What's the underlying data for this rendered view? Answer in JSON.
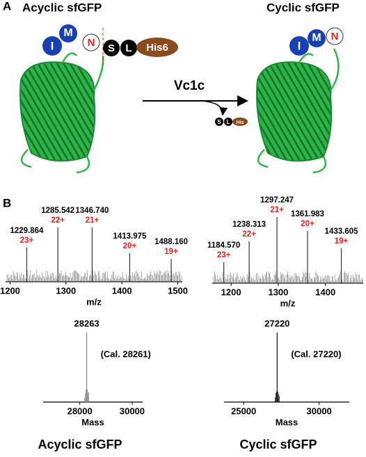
{
  "panel_a": {
    "label": "A",
    "left_title": "Acyclic sfGFP",
    "right_title": "Cyclic sfGFP",
    "enzyme": "Vc1c",
    "left_tags": [
      "I",
      "M",
      "N",
      "S",
      "L",
      "His6"
    ],
    "right_tags": [
      "I",
      "M",
      "N"
    ],
    "byproduct_tags": [
      "S",
      "L",
      "His"
    ]
  },
  "panel_b_label": "B",
  "chart_data": [
    {
      "type": "spectrum",
      "x": [
        1229.864,
        1285.542,
        1346.74,
        1413.975,
        1488.16
      ],
      "x_labels": [
        "1229.864",
        "1285.542",
        "1346.740",
        "1413.975",
        "1488.160"
      ],
      "charges": [
        "23+",
        "22+",
        "21+",
        "20+",
        "19+"
      ],
      "values": [
        60,
        95,
        95,
        50,
        40
      ],
      "xlim": [
        1192,
        1508
      ],
      "xticks": [
        1200,
        1300,
        1400,
        1500
      ],
      "xlabel": "m/z",
      "color": "#333333",
      "label_color": "#e8231f"
    },
    {
      "type": "spectrum",
      "x": [
        1184.57,
        1238.313,
        1297.247,
        1361.983,
        1433.605
      ],
      "x_labels": [
        "1184.570",
        "1238.313",
        "1297.247",
        "1361.983",
        "1433.605"
      ],
      "charges": [
        "23+",
        "22+",
        "21+",
        "20+",
        "19+"
      ],
      "values": [
        30,
        60,
        95,
        75,
        50
      ],
      "xlim": [
        1160,
        1480
      ],
      "xticks": [
        1200,
        1300,
        1400
      ],
      "xlabel": "m/z",
      "color": "#333333",
      "label_color": "#e8231f"
    },
    {
      "type": "spectrum",
      "x": [
        28263
      ],
      "values": [
        100
      ],
      "annotation": "(Cal. 28261)",
      "xlim": [
        26600,
        30400
      ],
      "xticks": [
        28000,
        30000
      ],
      "xlabel": "Mass",
      "color": "#888888"
    },
    {
      "type": "spectrum",
      "x": [
        27220
      ],
      "values": [
        100
      ],
      "annotation": "(Cal. 27220)",
      "xlim": [
        23700,
        32000
      ],
      "xticks": [
        25000,
        30000
      ],
      "xlabel": "Mass",
      "color": "#111111"
    }
  ],
  "footer": {
    "left": "Acyclic sfGFP",
    "right": "Cyclic sfGFP"
  }
}
